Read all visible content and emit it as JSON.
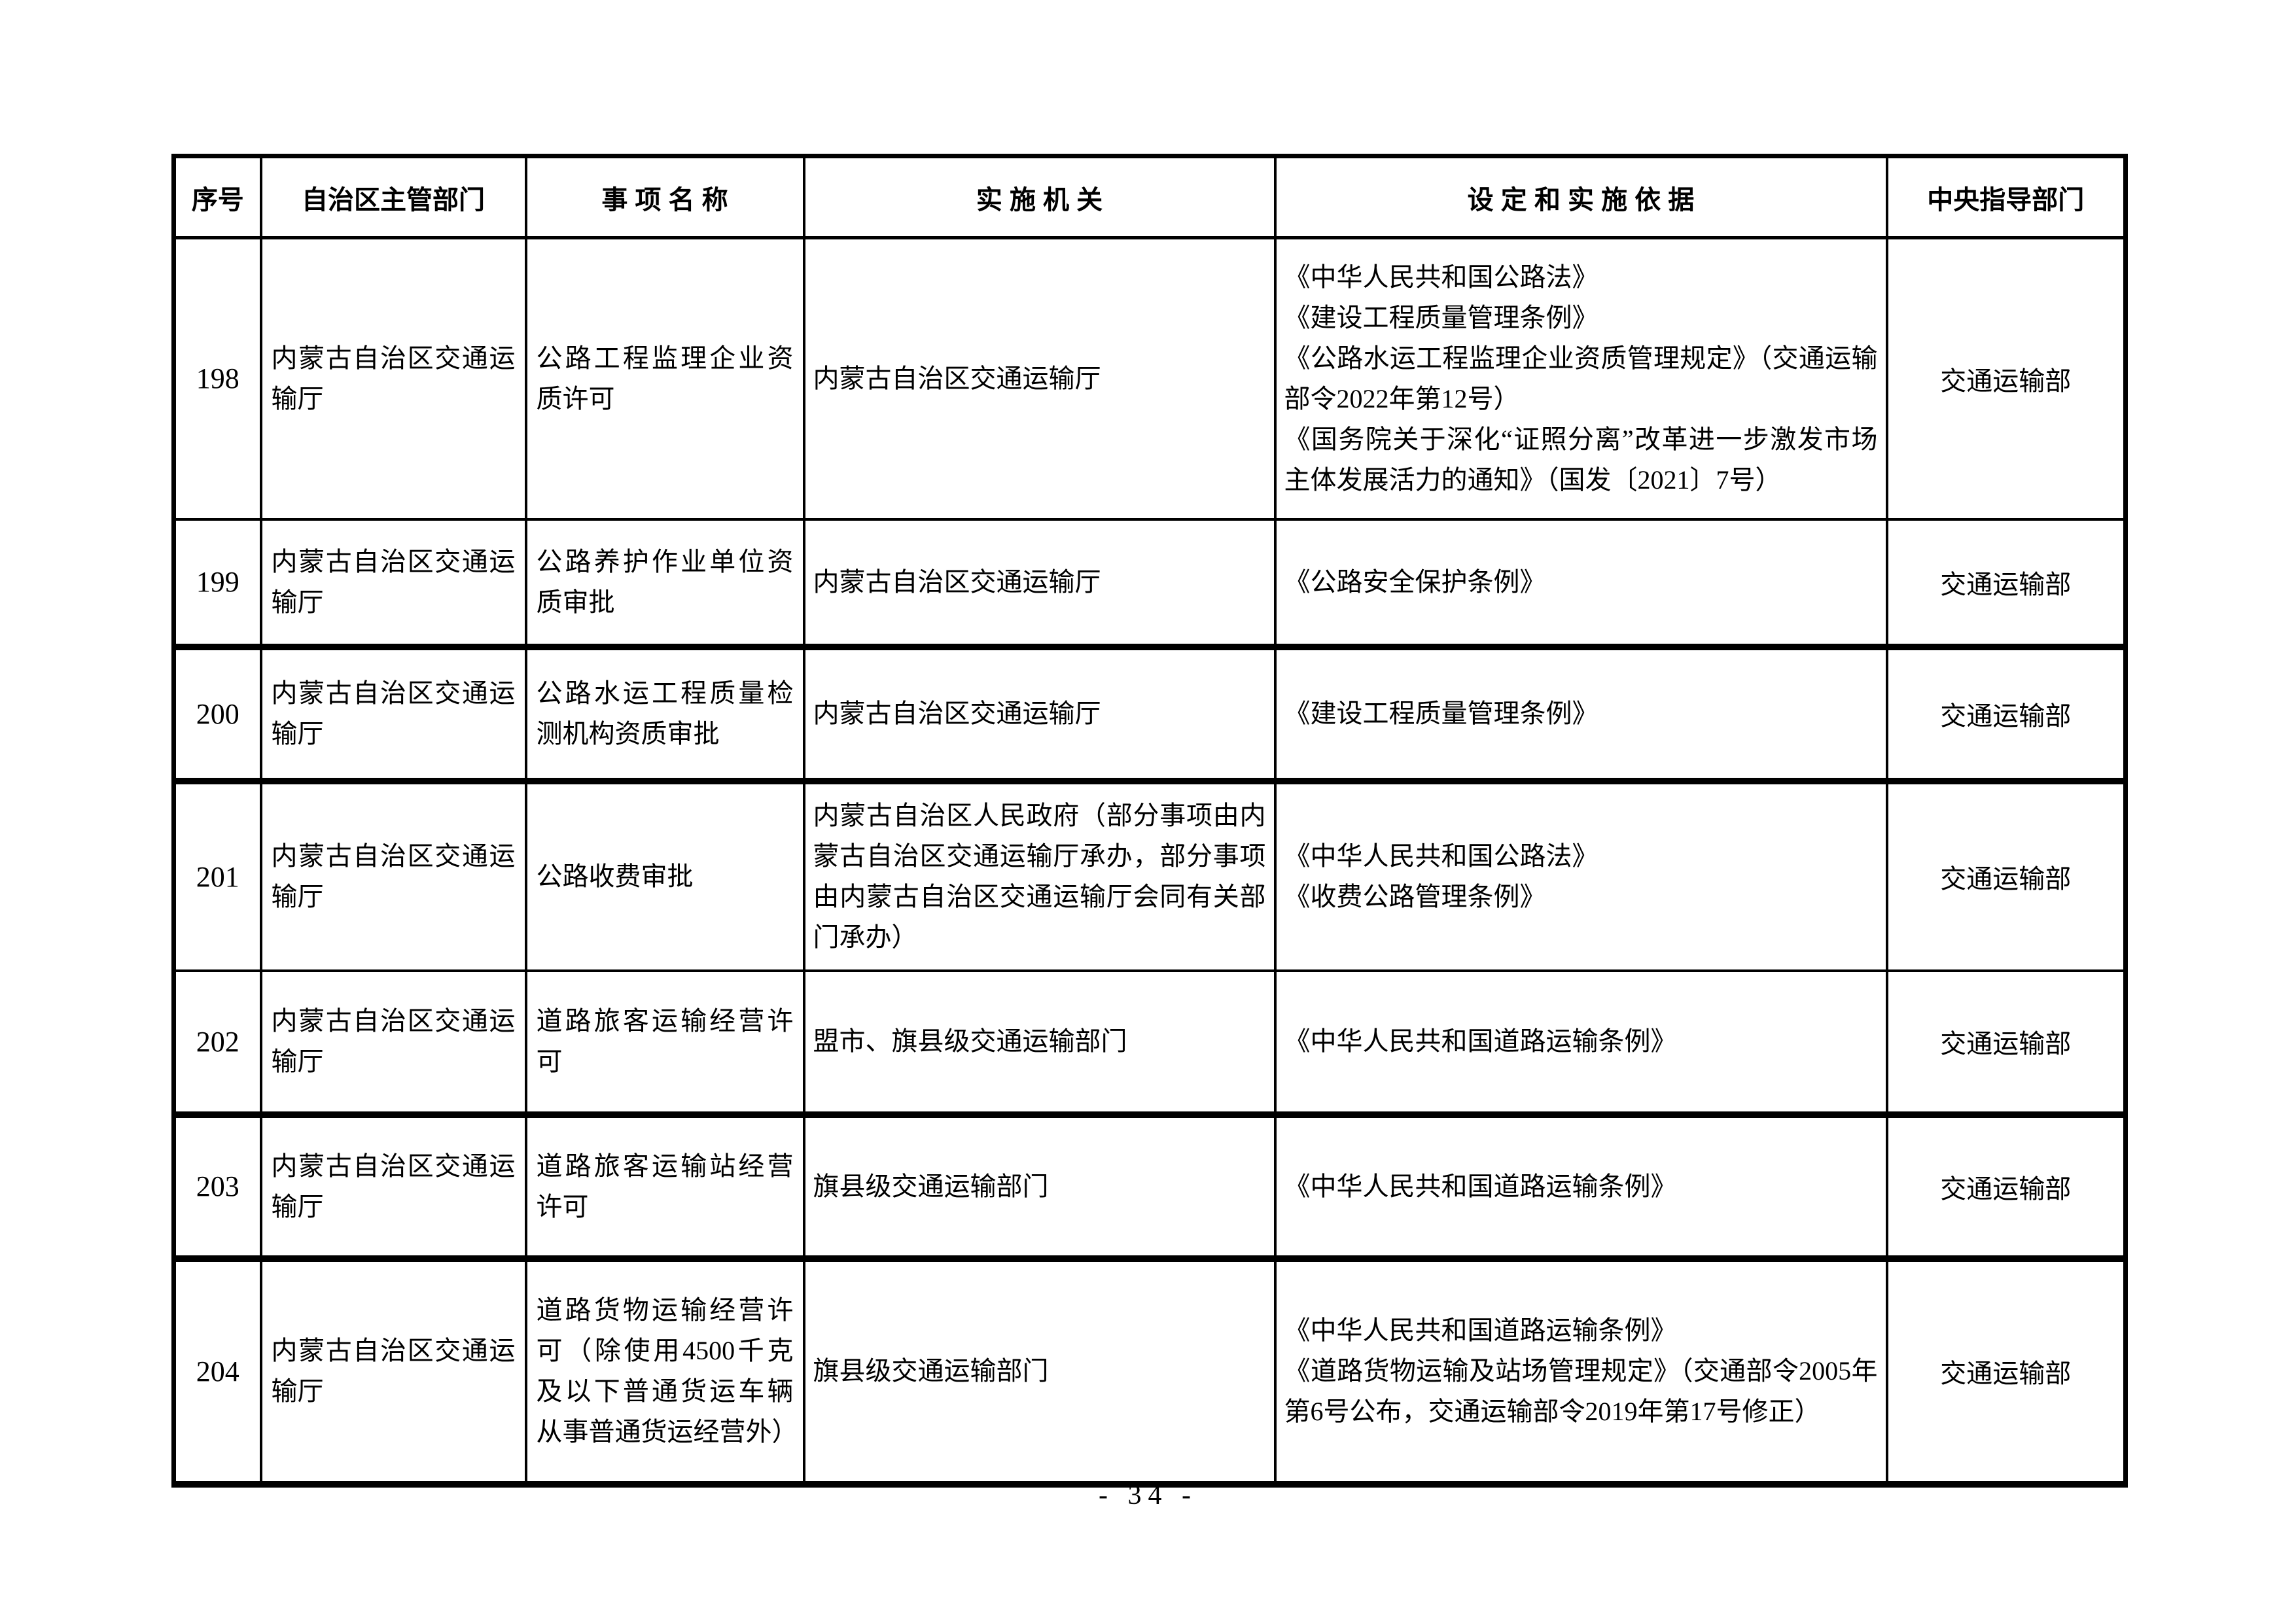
{
  "page": {
    "footer": "- 34 -"
  },
  "table": {
    "headers": [
      "序号",
      "自治区主管部门",
      "事 项 名 称",
      "实 施 机 关",
      "设 定 和 实 施 依 据",
      "中央指导部门"
    ],
    "rows": [
      {
        "no": "198",
        "dept": "内蒙古自治区交通运输厅",
        "item": "公路工程监理企业资质许可",
        "agency": "内蒙古自治区交通运输厅",
        "basis": [
          "《中华人民共和国公路法》",
          "《建设工程质量管理条例》",
          "《公路水运工程监理企业资质管理规定》（交通运输部令2022年第12号）",
          "《国务院关于深化“证照分离”改革进一步激发市场主体发展活力的通知》（国发〔2021〕7号）"
        ],
        "central": "交通运输部"
      },
      {
        "no": "199",
        "dept": "内蒙古自治区交通运输厅",
        "item": "公路养护作业单位资质审批",
        "agency": "内蒙古自治区交通运输厅",
        "basis": [
          "《公路安全保护条例》"
        ],
        "central": "交通运输部"
      },
      {
        "no": "200",
        "dept": "内蒙古自治区交通运输厅",
        "item": "公路水运工程质量检测机构资质审批",
        "agency": "内蒙古自治区交通运输厅",
        "basis": [
          "《建设工程质量管理条例》"
        ],
        "central": "交通运输部"
      },
      {
        "no": "201",
        "dept": "内蒙古自治区交通运输厅",
        "item": "公路收费审批",
        "agency": "内蒙古自治区人民政府（部分事项由内蒙古自治区交通运输厅承办，部分事项由内蒙古自治区交通运输厅会同有关部门承办）",
        "basis": [
          "《中华人民共和国公路法》",
          "《收费公路管理条例》"
        ],
        "central": "交通运输部"
      },
      {
        "no": "202",
        "dept": "内蒙古自治区交通运输厅",
        "item": "道路旅客运输经营许可",
        "agency": "盟市、旗县级交通运输部门",
        "basis": [
          "《中华人民共和国道路运输条例》"
        ],
        "central": "交通运输部"
      },
      {
        "no": "203",
        "dept": "内蒙古自治区交通运输厅",
        "item": "道路旅客运输站经营许可",
        "agency": "旗县级交通运输部门",
        "basis": [
          "《中华人民共和国道路运输条例》"
        ],
        "central": "交通运输部"
      },
      {
        "no": "204",
        "dept": "内蒙古自治区交通运输厅",
        "item": "道路货物运输经营许可（除使用4500千克及以下普通货运车辆从事普通货运经营外）",
        "agency": "旗县级交通运输部门",
        "basis": [
          "《中华人民共和国道路运输条例》",
          "《道路货物运输及站场管理规定》（交通部令2005年第6号公布，交通运输部令2019年第17号修正）"
        ],
        "central": "交通运输部"
      }
    ]
  }
}
